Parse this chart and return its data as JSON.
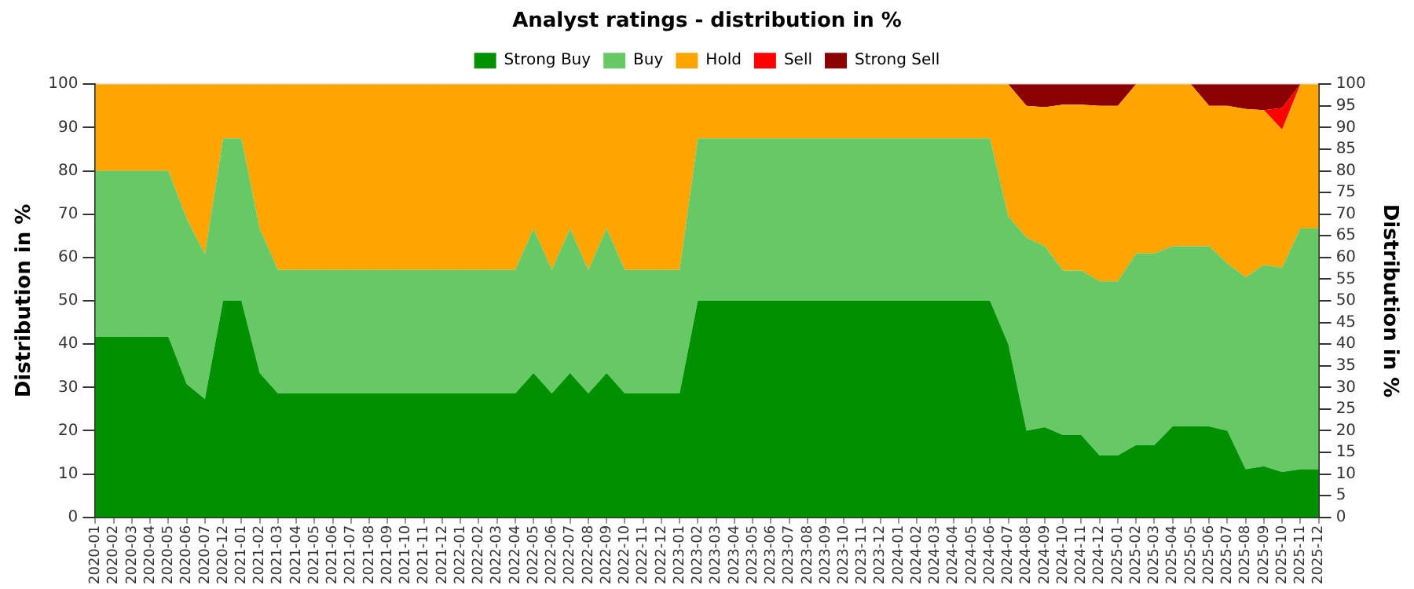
{
  "chart_data": {
    "type": "area",
    "title": "Analyst ratings - distribution in %",
    "ylabel": "Distribution in %",
    "y2label": "Distribution in %",
    "categories": [
      "2020-01",
      "2020-02",
      "2020-03",
      "2020-04",
      "2020-05",
      "2020-06",
      "2020-07",
      "2020-12",
      "2021-01",
      "2021-02",
      "2021-03",
      "2021-04",
      "2021-05",
      "2021-06",
      "2021-07",
      "2021-08",
      "2021-09",
      "2021-10",
      "2021-11",
      "2021-12",
      "2022-01",
      "2022-02",
      "2022-03",
      "2022-04",
      "2022-05",
      "2022-06",
      "2022-07",
      "2022-08",
      "2022-09",
      "2022-10",
      "2022-11",
      "2022-12",
      "2023-01",
      "2023-02",
      "2023-03",
      "2023-04",
      "2023-05",
      "2023-06",
      "2023-07",
      "2023-08",
      "2023-09",
      "2023-10",
      "2023-11",
      "2023-12",
      "2024-01",
      "2024-02",
      "2024-03",
      "2024-04",
      "2024-05",
      "2024-06",
      "2024-07",
      "2024-08",
      "2024-09",
      "2024-10",
      "2024-11",
      "2024-12",
      "2025-01",
      "2025-02",
      "2025-03",
      "2025-04",
      "2025-05",
      "2025-06",
      "2025-07",
      "2025-08",
      "2025-09",
      "2025-10",
      "2025-11",
      "2025-12"
    ],
    "stacked": true,
    "series": [
      {
        "name": "Strong Buy",
        "color": "#009000",
        "values": [
          41.7,
          41.7,
          41.7,
          41.7,
          41.7,
          30.8,
          27.3,
          50,
          50,
          33.3,
          28.6,
          28.6,
          28.6,
          28.6,
          28.6,
          28.6,
          28.6,
          28.6,
          28.6,
          28.6,
          28.6,
          28.6,
          28.6,
          28.6,
          33.3,
          28.6,
          33.3,
          28.6,
          33.3,
          28.6,
          28.6,
          28.6,
          28.6,
          50,
          50,
          50,
          50,
          50,
          50,
          50,
          50,
          50,
          50,
          50,
          50,
          50,
          50,
          50,
          50,
          50,
          40,
          20,
          20.8,
          19,
          19,
          14.3,
          14.3,
          16.7,
          16.7,
          21,
          21,
          21,
          20,
          11.1,
          11.8,
          10.5,
          11.1,
          11.1
        ]
      },
      {
        "name": "Buy",
        "color": "#66c966",
        "values": [
          38.3,
          38.3,
          38.3,
          38.3,
          38.3,
          38.2,
          33.4,
          37.5,
          37.5,
          33.4,
          28.5,
          28.5,
          28.5,
          28.5,
          28.5,
          28.5,
          28.5,
          28.5,
          28.5,
          28.5,
          28.5,
          28.5,
          28.5,
          28.5,
          33.4,
          28.5,
          33.4,
          28.5,
          33.4,
          28.5,
          28.5,
          28.5,
          28.5,
          37.5,
          37.5,
          37.5,
          37.5,
          37.5,
          37.5,
          37.5,
          37.5,
          37.5,
          37.5,
          37.5,
          37.5,
          37.5,
          37.5,
          37.5,
          37.5,
          37.5,
          29.5,
          44.6,
          41.8,
          38,
          38,
          40.2,
          40.2,
          44.2,
          44.2,
          41.6,
          41.6,
          41.6,
          38.6,
          44.3,
          46.5,
          47.1,
          55.6,
          55.6
        ]
      },
      {
        "name": "Hold",
        "color": "#ffa500",
        "values": [
          20,
          20,
          20,
          20,
          20,
          31,
          39.3,
          12.5,
          12.5,
          33.3,
          42.9,
          42.9,
          42.9,
          42.9,
          42.9,
          42.9,
          42.9,
          42.9,
          42.9,
          42.9,
          42.9,
          42.9,
          42.9,
          42.9,
          33.3,
          42.9,
          33.3,
          42.9,
          33.3,
          42.9,
          42.9,
          42.9,
          42.9,
          12.5,
          12.5,
          12.5,
          12.5,
          12.5,
          12.5,
          12.5,
          12.5,
          12.5,
          12.5,
          12.5,
          12.5,
          12.5,
          12.5,
          12.5,
          12.5,
          12.5,
          30.5,
          30.4,
          32.1,
          38.3,
          38.3,
          40.5,
          40.5,
          39.1,
          39.1,
          37.4,
          37.4,
          32.4,
          36.4,
          38.9,
          35.7,
          31.9,
          33.3,
          33.3
        ]
      },
      {
        "name": "Sell",
        "color": "#ff0000",
        "values": [
          0,
          0,
          0,
          0,
          0,
          0,
          0,
          0,
          0,
          0,
          0,
          0,
          0,
          0,
          0,
          0,
          0,
          0,
          0,
          0,
          0,
          0,
          0,
          0,
          0,
          0,
          0,
          0,
          0,
          0,
          0,
          0,
          0,
          0,
          0,
          0,
          0,
          0,
          0,
          0,
          0,
          0,
          0,
          0,
          0,
          0,
          0,
          0,
          0,
          0,
          0,
          0,
          0,
          0,
          0,
          0,
          0,
          0,
          0,
          0,
          0,
          0,
          0,
          0,
          0,
          5,
          0,
          0
        ]
      },
      {
        "name": "Strong Sell",
        "color": "#8b0000",
        "values": [
          0,
          0,
          0,
          0,
          0,
          0,
          0,
          0,
          0,
          0,
          0,
          0,
          0,
          0,
          0,
          0,
          0,
          0,
          0,
          0,
          0,
          0,
          0,
          0,
          0,
          0,
          0,
          0,
          0,
          0,
          0,
          0,
          0,
          0,
          0,
          0,
          0,
          0,
          0,
          0,
          0,
          0,
          0,
          0,
          0,
          0,
          0,
          0,
          0,
          0,
          0,
          5,
          5.3,
          4.7,
          4.7,
          5,
          5,
          0,
          0,
          0,
          0,
          5,
          5,
          5.7,
          6,
          5.5,
          0,
          0
        ]
      }
    ],
    "ylim": [
      0,
      100
    ],
    "yticks": [
      0,
      10,
      20,
      30,
      40,
      50,
      60,
      70,
      80,
      90,
      100
    ],
    "y2lim": [
      0,
      100
    ],
    "y2ticks": [
      0,
      5,
      10,
      15,
      20,
      25,
      30,
      35,
      40,
      45,
      50,
      55,
      60,
      65,
      70,
      75,
      80,
      85,
      90,
      95,
      100
    ],
    "grid": "y",
    "legend": "top"
  }
}
